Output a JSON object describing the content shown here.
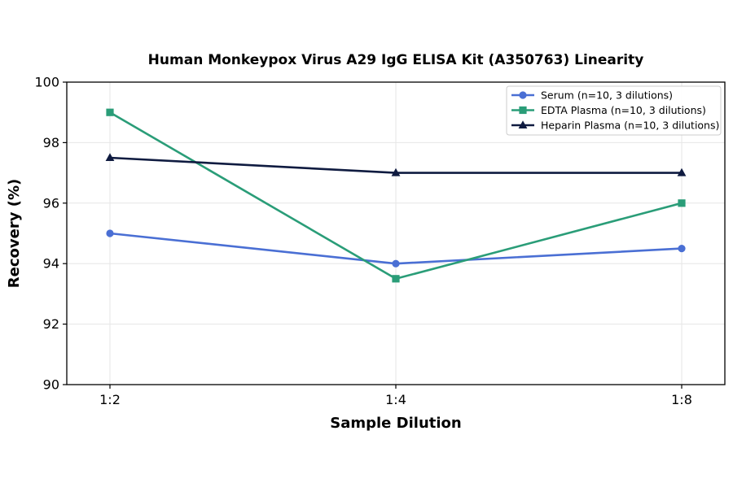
{
  "chart_data": {
    "type": "line",
    "title": "Human Monkeypox Virus A29 IgG ELISA Kit (A350763) Linearity",
    "xlabel": "Sample Dilution",
    "ylabel": "Recovery (%)",
    "categories": [
      "1:2",
      "1:4",
      "1:8"
    ],
    "ylim": [
      90,
      100
    ],
    "yticks": [
      "90",
      "92",
      "94",
      "96",
      "98",
      "100"
    ],
    "grid": true,
    "legend_position": "top-right",
    "series": [
      {
        "name": "Serum (n=10, 3 dilutions)",
        "values": [
          95,
          94,
          94.5
        ],
        "color": "#4a6fd4",
        "marker": "circle"
      },
      {
        "name": "EDTA Plasma (n=10, 3 dilutions)",
        "values": [
          99,
          93.5,
          96
        ],
        "color": "#2a9d78",
        "marker": "square"
      },
      {
        "name": "Heparin Plasma (n=10, 3 dilutions)",
        "values": [
          97.5,
          97,
          97
        ],
        "color": "#0f1b40",
        "marker": "triangle"
      }
    ]
  }
}
